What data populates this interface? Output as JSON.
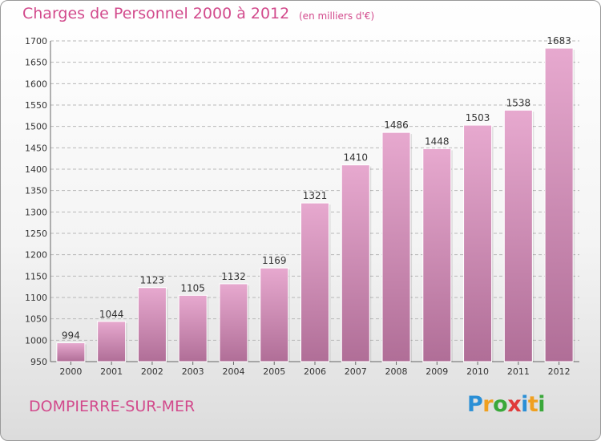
{
  "header": {
    "title": "Charges de Personnel 2000 à 2012",
    "subtitle": "(en milliers d'€)"
  },
  "footer": {
    "city": "DOMPIERRE-SUR-MER",
    "logo_letters": [
      {
        "ch": "P",
        "color": "#2a8fd6"
      },
      {
        "ch": "r",
        "color": "#f0a020"
      },
      {
        "ch": "o",
        "color": "#3aa83a"
      },
      {
        "ch": "x",
        "color": "#e03a3a"
      },
      {
        "ch": "i",
        "color": "#2a8fd6"
      },
      {
        "ch": "t",
        "color": "#f0a020"
      },
      {
        "ch": "i",
        "color": "#3aa83a"
      }
    ]
  },
  "colors": {
    "accent": "#d24a8c",
    "bar_top": "#e7a9cf",
    "bar_bottom": "#b06e97",
    "grid": "#b8b8b8"
  },
  "chart_data": {
    "type": "bar",
    "title": "Charges de Personnel 2000 à 2012",
    "subtitle": "(en milliers d'€)",
    "categories": [
      "2000",
      "2001",
      "2002",
      "2003",
      "2004",
      "2005",
      "2006",
      "2007",
      "2008",
      "2009",
      "2010",
      "2011",
      "2012"
    ],
    "values": [
      994,
      1044,
      1123,
      1105,
      1132,
      1169,
      1321,
      1410,
      1486,
      1448,
      1503,
      1538,
      1683
    ],
    "ylim": [
      950,
      1700
    ],
    "yticks": [
      950,
      1000,
      1050,
      1100,
      1150,
      1200,
      1250,
      1300,
      1350,
      1400,
      1450,
      1500,
      1550,
      1600,
      1650,
      1700
    ],
    "grid": true,
    "xlabel": "",
    "ylabel": ""
  }
}
